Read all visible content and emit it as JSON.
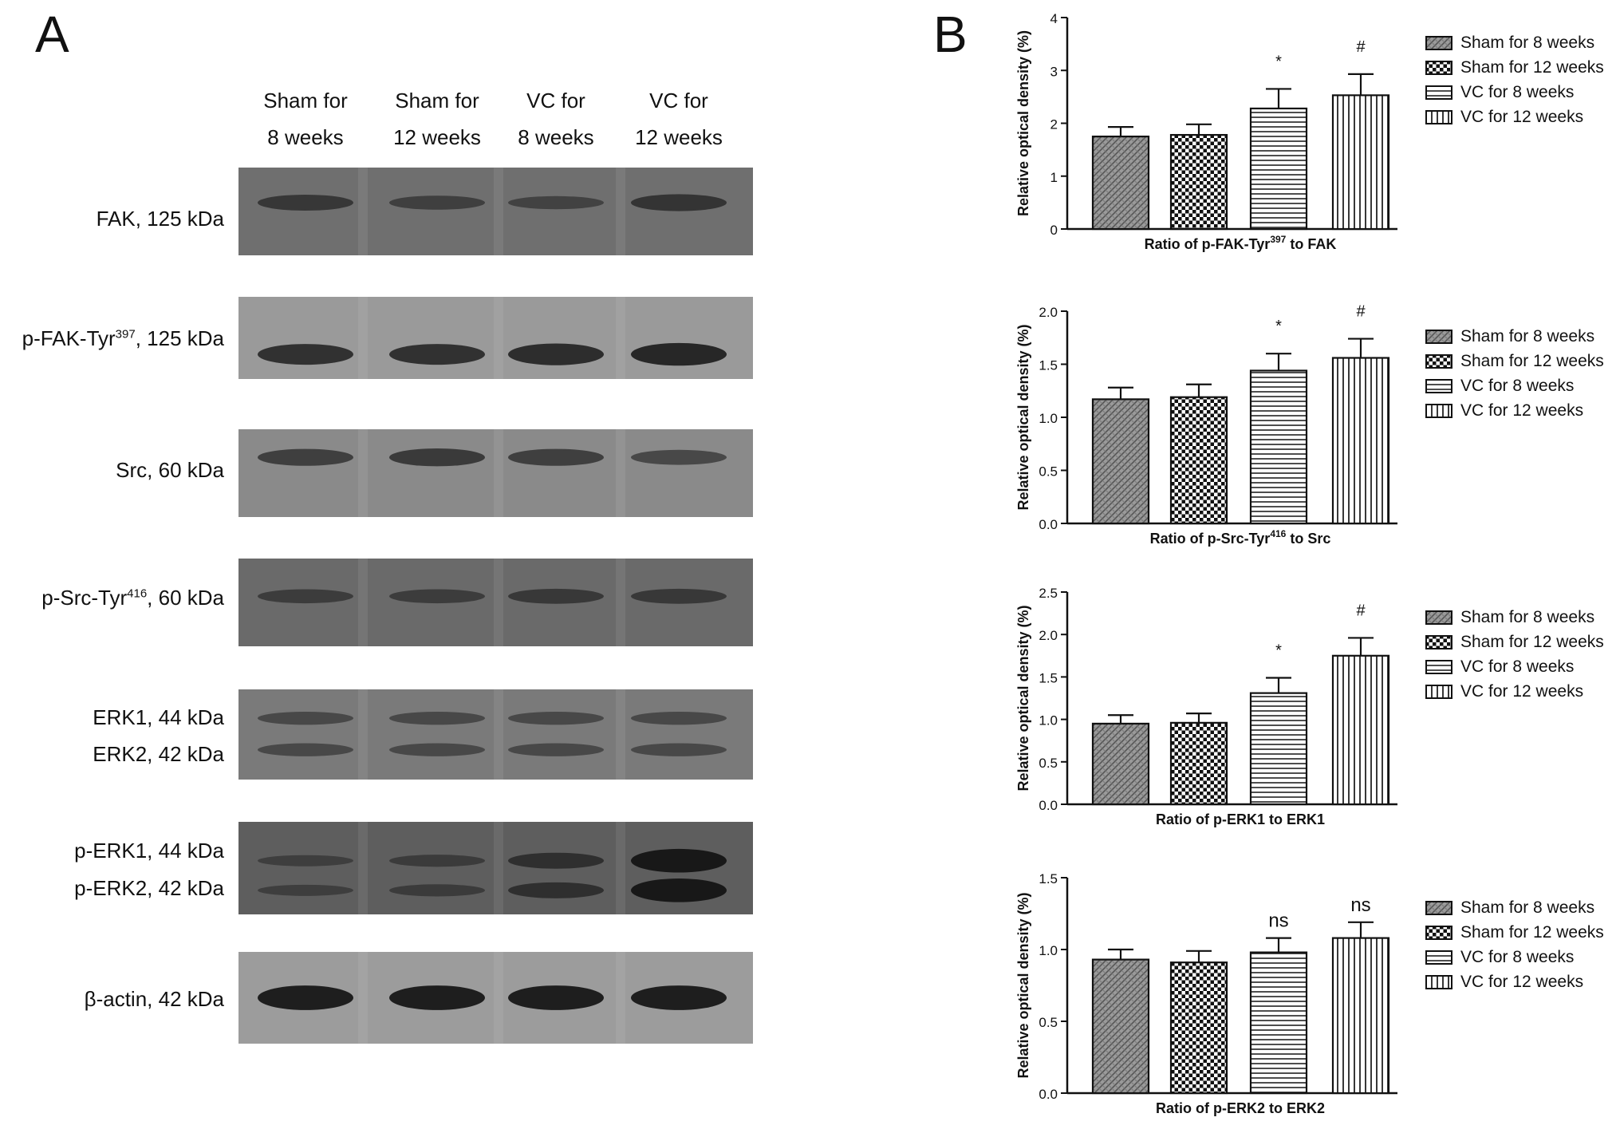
{
  "panel_a": {
    "letter": "A",
    "lanes": [
      {
        "line1": "Sham for",
        "line2": "8 weeks"
      },
      {
        "line1": "Sham for",
        "line2": "12 weeks"
      },
      {
        "line1": "VC for",
        "line2": "8 weeks"
      },
      {
        "line1": "VC for",
        "line2": "12 weeks"
      }
    ],
    "blots": [
      {
        "labels": [
          {
            "text": "FAK, 125 kDa"
          }
        ],
        "bg": "#6f6f6f",
        "band_intensity": [
          0.5,
          0.4,
          0.35,
          0.55
        ]
      },
      {
        "labels": [
          {
            "text": "p-FAK-Tyr",
            "sup": "397",
            "tail": ", 125 kDa"
          }
        ],
        "bg": "#9a9a9a",
        "band_intensity": [
          0.75,
          0.75,
          0.8,
          0.85
        ]
      },
      {
        "labels": [
          {
            "text": "Src, 60 kDa"
          }
        ],
        "bg": "#8a8a8a",
        "band_intensity": [
          0.55,
          0.6,
          0.55,
          0.45
        ]
      },
      {
        "labels": [
          {
            "text": "p-Src-Tyr",
            "sup": "416",
            "tail": ", 60 kDa"
          }
        ],
        "bg": "#6a6a6a",
        "band_intensity": [
          0.4,
          0.4,
          0.45,
          0.45
        ]
      },
      {
        "labels": [
          {
            "text": "ERK1, 44 kDa"
          },
          {
            "text": "ERK2, 42 kDa"
          }
        ],
        "bg": "#7a7a7a",
        "band_intensity": [
          0.35,
          0.35,
          0.35,
          0.35
        ]
      },
      {
        "labels": [
          {
            "text": "p-ERK1, 44 kDa"
          },
          {
            "text": "p-ERK2, 42 kDa"
          }
        ],
        "bg": "#5e5e5e",
        "band_intensity": [
          0.25,
          0.3,
          0.5,
          0.9
        ]
      },
      {
        "labels": [
          {
            "text": "β-actin, 42 kDa"
          }
        ],
        "bg": "#9c9c9c",
        "band_intensity": [
          0.95,
          0.95,
          0.95,
          0.95
        ]
      }
    ]
  },
  "panel_b": {
    "letter": "B"
  },
  "legend": [
    "Sham for 8 weeks",
    "Sham for 12 weeks",
    "VC for 8 weeks",
    "VC for 12 weeks"
  ],
  "chart_data": [
    {
      "type": "bar",
      "categories": [
        "Sham for 8 weeks",
        "Sham for 12 weeks",
        "VC for 8 weeks",
        "VC for 12 weeks"
      ],
      "values": [
        1.75,
        1.78,
        2.28,
        2.53
      ],
      "errors": [
        0.18,
        0.2,
        0.37,
        0.4
      ],
      "annotations": [
        "",
        "",
        "*",
        "#"
      ],
      "xlabel": "Ratio of p-FAK-Tyr",
      "xlabel_sup": "397",
      "xlabel_tail": " to FAK",
      "ylabel": "Relative optical density (%)",
      "ylim": [
        0,
        4
      ],
      "yticks": [
        "0",
        "1",
        "2",
        "3",
        "4"
      ],
      "ytick_values": [
        0,
        1,
        2,
        3,
        4
      ]
    },
    {
      "type": "bar",
      "categories": [
        "Sham for 8 weeks",
        "Sham for 12 weeks",
        "VC for 8 weeks",
        "VC for 12 weeks"
      ],
      "values": [
        1.17,
        1.19,
        1.44,
        1.56
      ],
      "errors": [
        0.11,
        0.12,
        0.16,
        0.18
      ],
      "annotations": [
        "",
        "",
        "*",
        "#"
      ],
      "xlabel": "Ratio of p-Src-Tyr",
      "xlabel_sup": "416",
      "xlabel_tail": " to Src",
      "ylabel": "Relative optical density (%)",
      "ylim": [
        0,
        2.0
      ],
      "yticks": [
        "0.0",
        "0.5",
        "1.0",
        "1.5",
        "2.0"
      ],
      "ytick_values": [
        0,
        0.5,
        1.0,
        1.5,
        2.0
      ]
    },
    {
      "type": "bar",
      "categories": [
        "Sham for 8 weeks",
        "Sham for 12 weeks",
        "VC for 8 weeks",
        "VC for 12 weeks"
      ],
      "values": [
        0.95,
        0.96,
        1.31,
        1.75
      ],
      "errors": [
        0.1,
        0.11,
        0.18,
        0.21
      ],
      "annotations": [
        "",
        "",
        "*",
        "#"
      ],
      "xlabel": "Ratio of p-ERK1 to ERK1",
      "xlabel_sup": "",
      "xlabel_tail": "",
      "ylabel": "Relative optical density (%)",
      "ylim": [
        0,
        2.5
      ],
      "yticks": [
        "0.0",
        "0.5",
        "1.0",
        "1.5",
        "2.0",
        "2.5"
      ],
      "ytick_values": [
        0,
        0.5,
        1.0,
        1.5,
        2.0,
        2.5
      ]
    },
    {
      "type": "bar",
      "categories": [
        "Sham for 8 weeks",
        "Sham for 12 weeks",
        "VC for 8 weeks",
        "VC for 12 weeks"
      ],
      "values": [
        0.93,
        0.91,
        0.98,
        1.08
      ],
      "errors": [
        0.07,
        0.08,
        0.1,
        0.11
      ],
      "annotations": [
        "",
        "",
        "ns",
        "ns"
      ],
      "xlabel": "Ratio of p-ERK2 to ERK2",
      "xlabel_sup": "",
      "xlabel_tail": "",
      "ylabel": "Relative optical density (%)",
      "ylim": [
        0,
        1.5
      ],
      "yticks": [
        "0.0",
        "0.5",
        "1.0",
        "1.5"
      ],
      "ytick_values": [
        0,
        0.5,
        1.0,
        1.5
      ]
    }
  ]
}
